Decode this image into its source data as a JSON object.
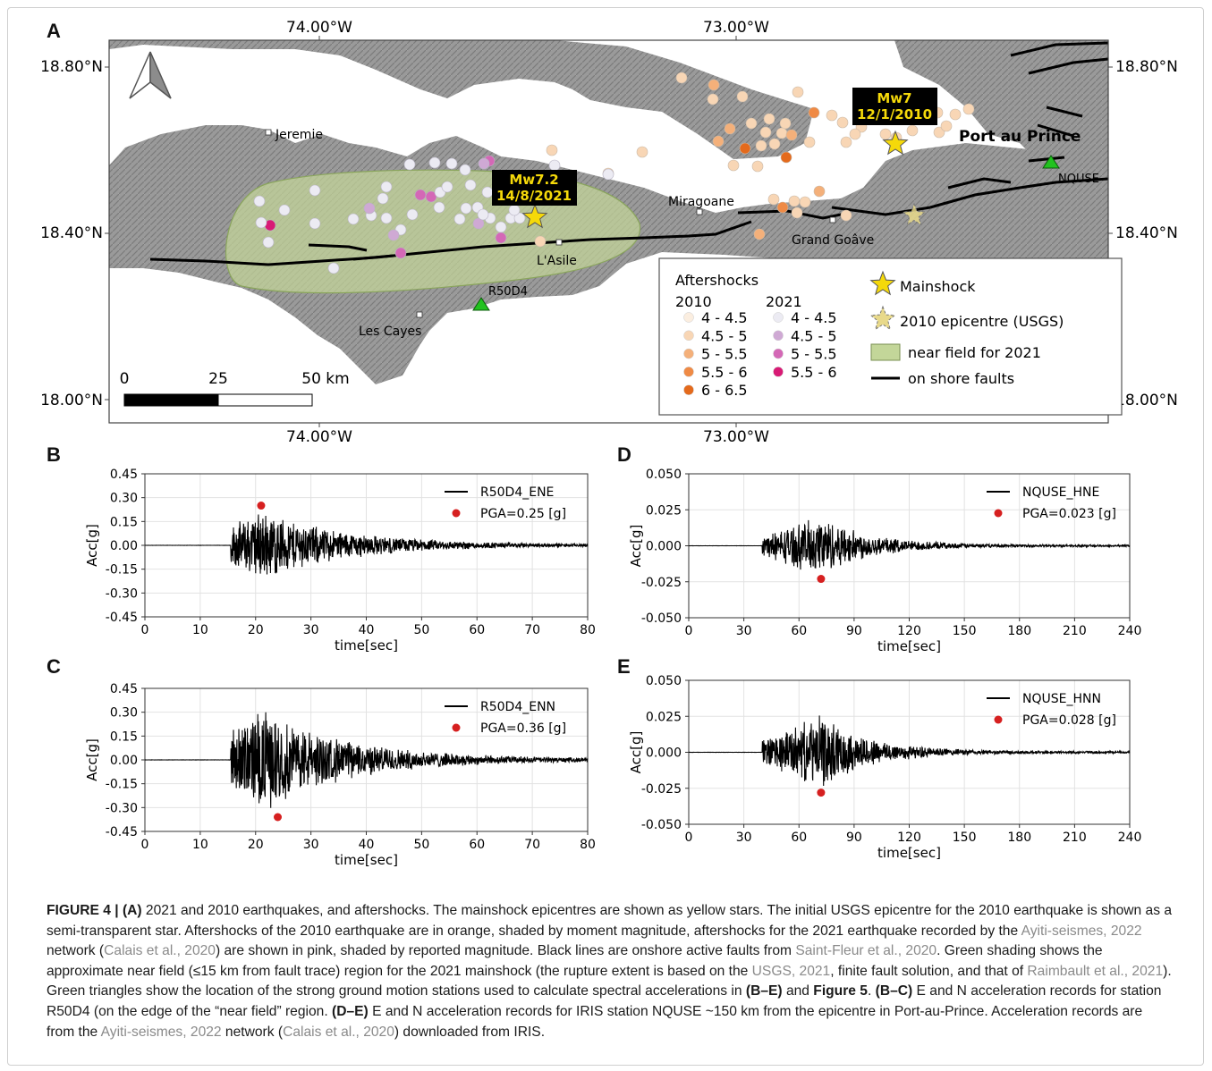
{
  "panel_labels": {
    "a": "A",
    "b": "B",
    "c": "C",
    "d": "D",
    "e": "E"
  },
  "map": {
    "lon_labels": [
      "74.00°W",
      "73.00°W"
    ],
    "lat_labels": [
      "18.80°N",
      "18.40°N",
      "18.00°N"
    ],
    "places": {
      "jeremie": "Jeremie",
      "miragoane": "Miragoane",
      "grand_goave": "Grand Goâve",
      "lasile": "L'Asile",
      "les_cayes": "Les Cayes",
      "port_au_prince": "Port au Prince",
      "r50d4": "R50D4",
      "nquse": "NQUSE"
    },
    "annot_2021": {
      "line1": "Mw7.2",
      "line2": "14/8/2021"
    },
    "annot_2010": {
      "line1": "Mw7",
      "line2": "12/1/2010"
    },
    "scale": {
      "t0": "0",
      "t1": "25",
      "t2": "50 km"
    },
    "legend": {
      "title": "Aftershocks",
      "col2010": "2010",
      "col2021": "2021",
      "mag2010": [
        "4 - 4.5",
        "4.5 - 5",
        "5 - 5.5",
        "5.5 - 6",
        "6 - 6.5"
      ],
      "mag2021": [
        "4 - 4.5",
        "4.5 - 5",
        "5 - 5.5",
        "5.5 - 6"
      ],
      "mainshock": "Mainshock",
      "epi2010": "2010 epicentre (USGS)",
      "nearfield": "near field for 2021",
      "faults": "on shore faults"
    },
    "colors": {
      "orange": [
        "#fbeee0",
        "#f8d6b5",
        "#f4b07a",
        "#ef8a45",
        "#e46a1c"
      ],
      "pink": [
        "#ecebf3",
        "#cfa9d4",
        "#d468b6",
        "#d81a75"
      ],
      "nearfield": "#c3d699",
      "star": "#f5d90a",
      "station": "#22c21f",
      "annot_bg": "#000000",
      "annot_fg": "#f5d90a"
    }
  },
  "chart_data": [
    {
      "type": "line",
      "panel": "B",
      "series": [
        {
          "name": "R50D4_ENE"
        }
      ],
      "pga_label": "PGA=0.25 [g]",
      "pga": {
        "x": 21,
        "y": 0.25
      },
      "xlabel": "time[sec]",
      "ylabel": "Acc[g]",
      "xlim": [
        0,
        80
      ],
      "ylim": [
        -0.45,
        0.45
      ],
      "xticks": [
        "0",
        "10",
        "20",
        "30",
        "40",
        "50",
        "60",
        "70",
        "80"
      ],
      "yticks": [
        "0.45",
        "0.30",
        "0.15",
        "0.00",
        "-0.15",
        "-0.30",
        "-0.45"
      ],
      "grid": true,
      "legend": "top-right"
    },
    {
      "type": "line",
      "panel": "C",
      "series": [
        {
          "name": "R50D4_ENN"
        }
      ],
      "pga_label": "PGA=0.36 [g]",
      "pga": {
        "x": 24,
        "y": -0.36
      },
      "xlabel": "time[sec]",
      "ylabel": "Acc[g]",
      "xlim": [
        0,
        80
      ],
      "ylim": [
        -0.45,
        0.45
      ],
      "xticks": [
        "0",
        "10",
        "20",
        "30",
        "40",
        "50",
        "60",
        "70",
        "80"
      ],
      "yticks": [
        "0.45",
        "0.30",
        "0.15",
        "0.00",
        "-0.15",
        "-0.30",
        "-0.45"
      ],
      "grid": true,
      "legend": "top-right"
    },
    {
      "type": "line",
      "panel": "D",
      "series": [
        {
          "name": "NQUSE_HNE"
        }
      ],
      "pga_label": "PGA=0.023 [g]",
      "pga": {
        "x": 72,
        "y": -0.023
      },
      "xlabel": "time[sec]",
      "ylabel": "Acc[g]",
      "xlim": [
        0,
        240
      ],
      "ylim": [
        -0.05,
        0.05
      ],
      "xticks": [
        "0",
        "30",
        "60",
        "90",
        "120",
        "150",
        "180",
        "210",
        "240"
      ],
      "yticks": [
        "0.050",
        "0.025",
        "0.000",
        "-0.025",
        "-0.050"
      ],
      "grid": true,
      "legend": "top-right"
    },
    {
      "type": "line",
      "panel": "E",
      "series": [
        {
          "name": "NQUSE_HNN"
        }
      ],
      "pga_label": "PGA=0.028 [g]",
      "pga": {
        "x": 72,
        "y": -0.028
      },
      "xlabel": "time[sec]",
      "ylabel": "Acc[g]",
      "xlim": [
        0,
        240
      ],
      "ylim": [
        -0.05,
        0.05
      ],
      "xticks": [
        "0",
        "30",
        "60",
        "90",
        "120",
        "150",
        "180",
        "210",
        "240"
      ],
      "yticks": [
        "0.050",
        "0.025",
        "0.000",
        "-0.025",
        "-0.050"
      ],
      "grid": true,
      "legend": "top-right"
    }
  ],
  "caption": {
    "label": "FIGURE 4 | (A)",
    "t1": " 2021 and 2010 earthquakes, and aftershocks. The mainshock epicentres are shown as yellow stars. The initial USGS epicentre for the 2010 earthquake is shown as a semi-transparent star. Aftershocks of the 2010 earthquake are in orange, shaded by moment magnitude, aftershocks for the 2021 earthquake recorded by the ",
    "l1": "Ayiti-seismes, 2022",
    "t2": " network (",
    "l2": "Calais et al., 2020",
    "t3": ") are shown in pink, shaded by reported magnitude. Black lines are onshore active faults from ",
    "l3": "Saint-Fleur et al., 2020",
    "t4": ". Green shading shows the approximate near field (≤15 km from fault trace) region for the 2021 mainshock (the rupture extent is based on the ",
    "l4": "USGS, 2021",
    "t5": ", finite fault solution, and that of ",
    "l5": "Raimbault et al., 2021",
    "t6": "). Green triangles show the location of the strong ground motion stations used to calculate spectral accelerations in ",
    "b1": "(B–E)",
    "t7": " and ",
    "b2": "Figure 5",
    "t8": ". ",
    "b3": "(B–C)",
    "t9": " E and N acceleration records for station R50D4 (on the edge of the “near field” region. ",
    "b4": "(D–E)",
    "t10": " E and N acceleration records for IRIS station NQUSE ~150 km from the epicentre in Port-au-Prince. Acceleration records are from the ",
    "l6": "Ayiti-seismes, 2022",
    "t11": " network (",
    "l7": "Calais et al., 2020",
    "t12": ") downloaded from IRIS."
  }
}
